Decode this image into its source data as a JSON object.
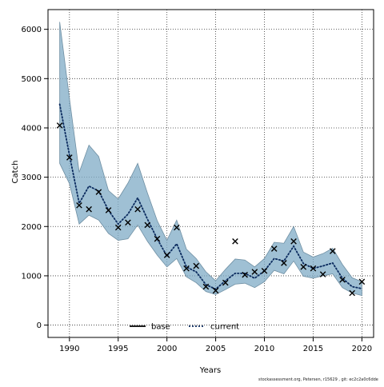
{
  "chart_data": {
    "type": "line",
    "xlabel": "Years",
    "ylabel": "Catch",
    "xlim": [
      1987.8,
      2021.2
    ],
    "ylim": [
      -250,
      6400
    ],
    "xticks": [
      1990,
      1995,
      2000,
      2005,
      2010,
      2015,
      2020
    ],
    "yticks": [
      0,
      1000,
      2000,
      3000,
      4000,
      5000,
      6000
    ],
    "grid": true,
    "legend_position": "bottom-center",
    "colors": {
      "band": "#7fabc6",
      "band_edge": "#6f8fa3",
      "current": "#0a2a5e",
      "base": "#000000"
    },
    "x": [
      1989,
      1990,
      1991,
      1992,
      1993,
      1994,
      1995,
      1996,
      1997,
      1998,
      1999,
      2000,
      2001,
      2002,
      2003,
      2004,
      2005,
      2006,
      2007,
      2008,
      2009,
      2010,
      2011,
      2012,
      2013,
      2014,
      2015,
      2016,
      2017,
      2018,
      2019,
      2020
    ],
    "series": [
      {
        "name": "current",
        "style": "dotted",
        "values": [
          4480,
          3450,
          2470,
          2820,
          2720,
          2330,
          2050,
          2250,
          2580,
          2150,
          1750,
          1400,
          1650,
          1180,
          1080,
          820,
          730,
          900,
          1050,
          1050,
          950,
          1100,
          1350,
          1300,
          1600,
          1250,
          1150,
          1200,
          1260,
          950,
          780,
          740
        ]
      },
      {
        "name": "band_upper",
        "values": [
          6150,
          4600,
          3100,
          3650,
          3420,
          2730,
          2560,
          2880,
          3280,
          2680,
          2120,
          1720,
          2130,
          1540,
          1350,
          1080,
          900,
          1130,
          1340,
          1320,
          1180,
          1350,
          1680,
          1660,
          2000,
          1480,
          1380,
          1450,
          1560,
          1230,
          960,
          880
        ]
      },
      {
        "name": "band_lower",
        "values": [
          3280,
          2870,
          2050,
          2230,
          2130,
          1860,
          1720,
          1750,
          2030,
          1700,
          1420,
          1180,
          1350,
          980,
          860,
          680,
          620,
          720,
          830,
          850,
          760,
          880,
          1110,
          1040,
          1300,
          990,
          950,
          1000,
          1040,
          760,
          650,
          600
        ]
      },
      {
        "name": "base",
        "marker": "x",
        "values": [
          4050,
          3400,
          2430,
          2350,
          2700,
          2330,
          1980,
          2080,
          2350,
          2030,
          1750,
          1420,
          1980,
          1150,
          1200,
          780,
          700,
          860,
          1700,
          1020,
          1080,
          1100,
          1550,
          1260,
          1700,
          1180,
          1150,
          1030,
          1500,
          920,
          650,
          880
        ]
      }
    ],
    "legend": [
      {
        "name": "base",
        "label": "base",
        "style": "solid"
      },
      {
        "name": "current",
        "label": "current",
        "style": "dotted"
      }
    ]
  },
  "footnote": "stockassessment.org, Petersen, r15629 , git: ec2c2a0c6dde"
}
